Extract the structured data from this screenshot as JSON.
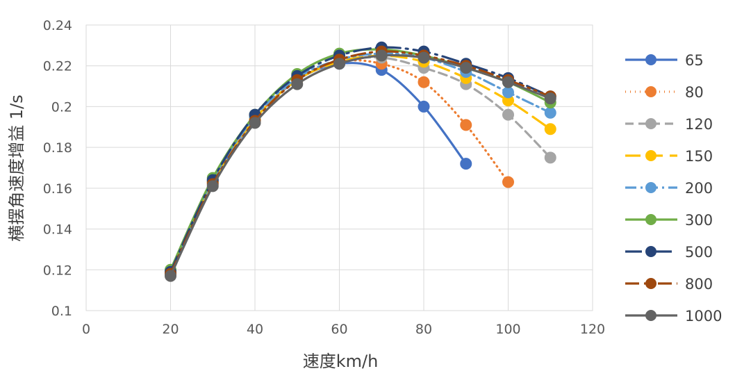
{
  "chart_data": {
    "type": "line",
    "title": "",
    "xlabel": "速度km/h",
    "ylabel": "横摆角速度增益 1/s",
    "xlim": [
      0,
      120
    ],
    "ylim": [
      0.1,
      0.24
    ],
    "x_ticks": [
      "0",
      "20",
      "40",
      "60",
      "80",
      "100",
      "120"
    ],
    "y_ticks": [
      "0.1",
      "0.12",
      "0.14",
      "0.16",
      "0.18",
      "0.2",
      "0.22",
      "0.24"
    ],
    "grid": true,
    "legend_position": "right",
    "series": [
      {
        "name": "65",
        "color": "#4472C4",
        "dash": "solid",
        "x": [
          20,
          30,
          40,
          50,
          60,
          70,
          80,
          90
        ],
        "values": [
          0.118,
          0.163,
          0.194,
          0.213,
          0.221,
          0.218,
          0.2,
          0.172
        ]
      },
      {
        "name": "80",
        "color": "#ED7D31",
        "dash": "dot",
        "x": [
          20,
          30,
          40,
          50,
          60,
          70,
          80,
          90,
          100
        ],
        "values": [
          0.118,
          0.163,
          0.194,
          0.213,
          0.222,
          0.221,
          0.212,
          0.191,
          0.163
        ]
      },
      {
        "name": "120",
        "color": "#A5A5A5",
        "dash": "dash",
        "x": [
          20,
          30,
          40,
          50,
          60,
          70,
          80,
          90,
          100,
          110
        ],
        "values": [
          0.118,
          0.163,
          0.194,
          0.213,
          0.222,
          0.224,
          0.219,
          0.211,
          0.196,
          0.175
        ]
      },
      {
        "name": "150",
        "color": "#FFC000",
        "dash": "longdash",
        "x": [
          20,
          30,
          40,
          50,
          60,
          70,
          80,
          90,
          100,
          110
        ],
        "values": [
          0.118,
          0.163,
          0.194,
          0.213,
          0.222,
          0.225,
          0.222,
          0.214,
          0.203,
          0.189
        ]
      },
      {
        "name": "200",
        "color": "#5B9BD5",
        "dash": "dashdot",
        "x": [
          20,
          30,
          40,
          50,
          60,
          70,
          80,
          90,
          100,
          110
        ],
        "values": [
          0.119,
          0.164,
          0.195,
          0.214,
          0.223,
          0.226,
          0.224,
          0.217,
          0.207,
          0.197
        ]
      },
      {
        "name": "300",
        "color": "#70AD47",
        "dash": "solid",
        "x": [
          20,
          30,
          40,
          50,
          60,
          70,
          80,
          90,
          100,
          110
        ],
        "values": [
          0.12,
          0.165,
          0.196,
          0.216,
          0.226,
          0.228,
          0.225,
          0.219,
          0.212,
          0.202
        ]
      },
      {
        "name": "500",
        "color": "#264478",
        "dash": "longdashdot",
        "x": [
          20,
          30,
          40,
          50,
          60,
          70,
          80,
          90,
          100,
          110
        ],
        "values": [
          0.119,
          0.164,
          0.196,
          0.215,
          0.225,
          0.229,
          0.227,
          0.221,
          0.214,
          0.205
        ]
      },
      {
        "name": "800",
        "color": "#9E480E",
        "dash": "longdashdotdot",
        "x": [
          20,
          30,
          40,
          50,
          60,
          70,
          80,
          90,
          100,
          110
        ],
        "values": [
          0.118,
          0.162,
          0.193,
          0.213,
          0.223,
          0.227,
          0.225,
          0.22,
          0.213,
          0.205
        ]
      },
      {
        "name": "1000",
        "color": "#636363",
        "dash": "solid",
        "x": [
          20,
          30,
          40,
          50,
          60,
          70,
          80,
          90,
          100,
          110
        ],
        "values": [
          0.117,
          0.161,
          0.192,
          0.211,
          0.221,
          0.225,
          0.224,
          0.219,
          0.212,
          0.204
        ]
      }
    ]
  }
}
